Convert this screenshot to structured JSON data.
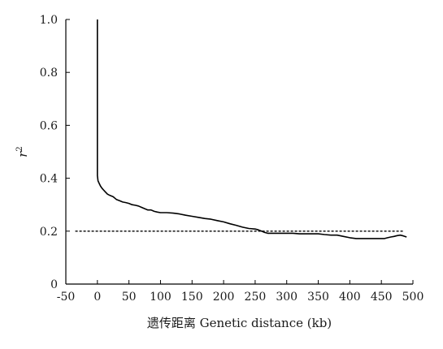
{
  "chart_data": {
    "type": "line",
    "title": "",
    "xlabel": "遗传距离 Genetic distance (kb)",
    "ylabel": {
      "base": "r",
      "sup": "2"
    },
    "xlim": [
      -50,
      500
    ],
    "ylim": [
      0,
      1.0
    ],
    "x_ticks": [
      -50,
      0,
      50,
      100,
      150,
      200,
      250,
      300,
      350,
      400,
      450,
      500
    ],
    "y_ticks": [
      0,
      0.2,
      0.4,
      0.6,
      0.8,
      1.0
    ],
    "x_tick_labels": [
      "-50",
      "0",
      "50",
      "100",
      "150",
      "200",
      "250",
      "300",
      "350",
      "400",
      "450",
      "500"
    ],
    "y_tick_labels": [
      "0",
      "0.2",
      "0.4",
      "0.6",
      "0.8",
      "1.0"
    ],
    "grid": false,
    "series": [
      {
        "style": "solid",
        "color": "#000000",
        "x": [
          0,
          0,
          1,
          3,
          5,
          8,
          12,
          16,
          20,
          25,
          30,
          35,
          40,
          45,
          50,
          55,
          60,
          65,
          70,
          75,
          80,
          85,
          90,
          95,
          100,
          110,
          120,
          130,
          140,
          150,
          160,
          170,
          180,
          190,
          200,
          210,
          220,
          230,
          240,
          250,
          255,
          260,
          265,
          270,
          280,
          290,
          300,
          310,
          320,
          330,
          340,
          350,
          360,
          370,
          380,
          390,
          400,
          410,
          420,
          430,
          440,
          450,
          455,
          460,
          465,
          470,
          475,
          480,
          485,
          490
        ],
        "y": [
          1.0,
          0.41,
          0.39,
          0.38,
          0.37,
          0.36,
          0.35,
          0.34,
          0.335,
          0.33,
          0.32,
          0.315,
          0.31,
          0.308,
          0.305,
          0.3,
          0.298,
          0.295,
          0.29,
          0.285,
          0.28,
          0.28,
          0.275,
          0.272,
          0.27,
          0.27,
          0.268,
          0.265,
          0.26,
          0.256,
          0.252,
          0.248,
          0.245,
          0.24,
          0.235,
          0.228,
          0.222,
          0.215,
          0.21,
          0.208,
          0.205,
          0.2,
          0.195,
          0.192,
          0.192,
          0.192,
          0.192,
          0.192,
          0.19,
          0.19,
          0.19,
          0.19,
          0.187,
          0.185,
          0.185,
          0.18,
          0.175,
          0.172,
          0.172,
          0.172,
          0.172,
          0.172,
          0.172,
          0.175,
          0.178,
          0.18,
          0.183,
          0.185,
          0.182,
          0.178
        ]
      },
      {
        "style": "dashed",
        "color": "#000000",
        "x": [
          -35,
          485
        ],
        "y": [
          0.2,
          0.2
        ]
      }
    ]
  }
}
